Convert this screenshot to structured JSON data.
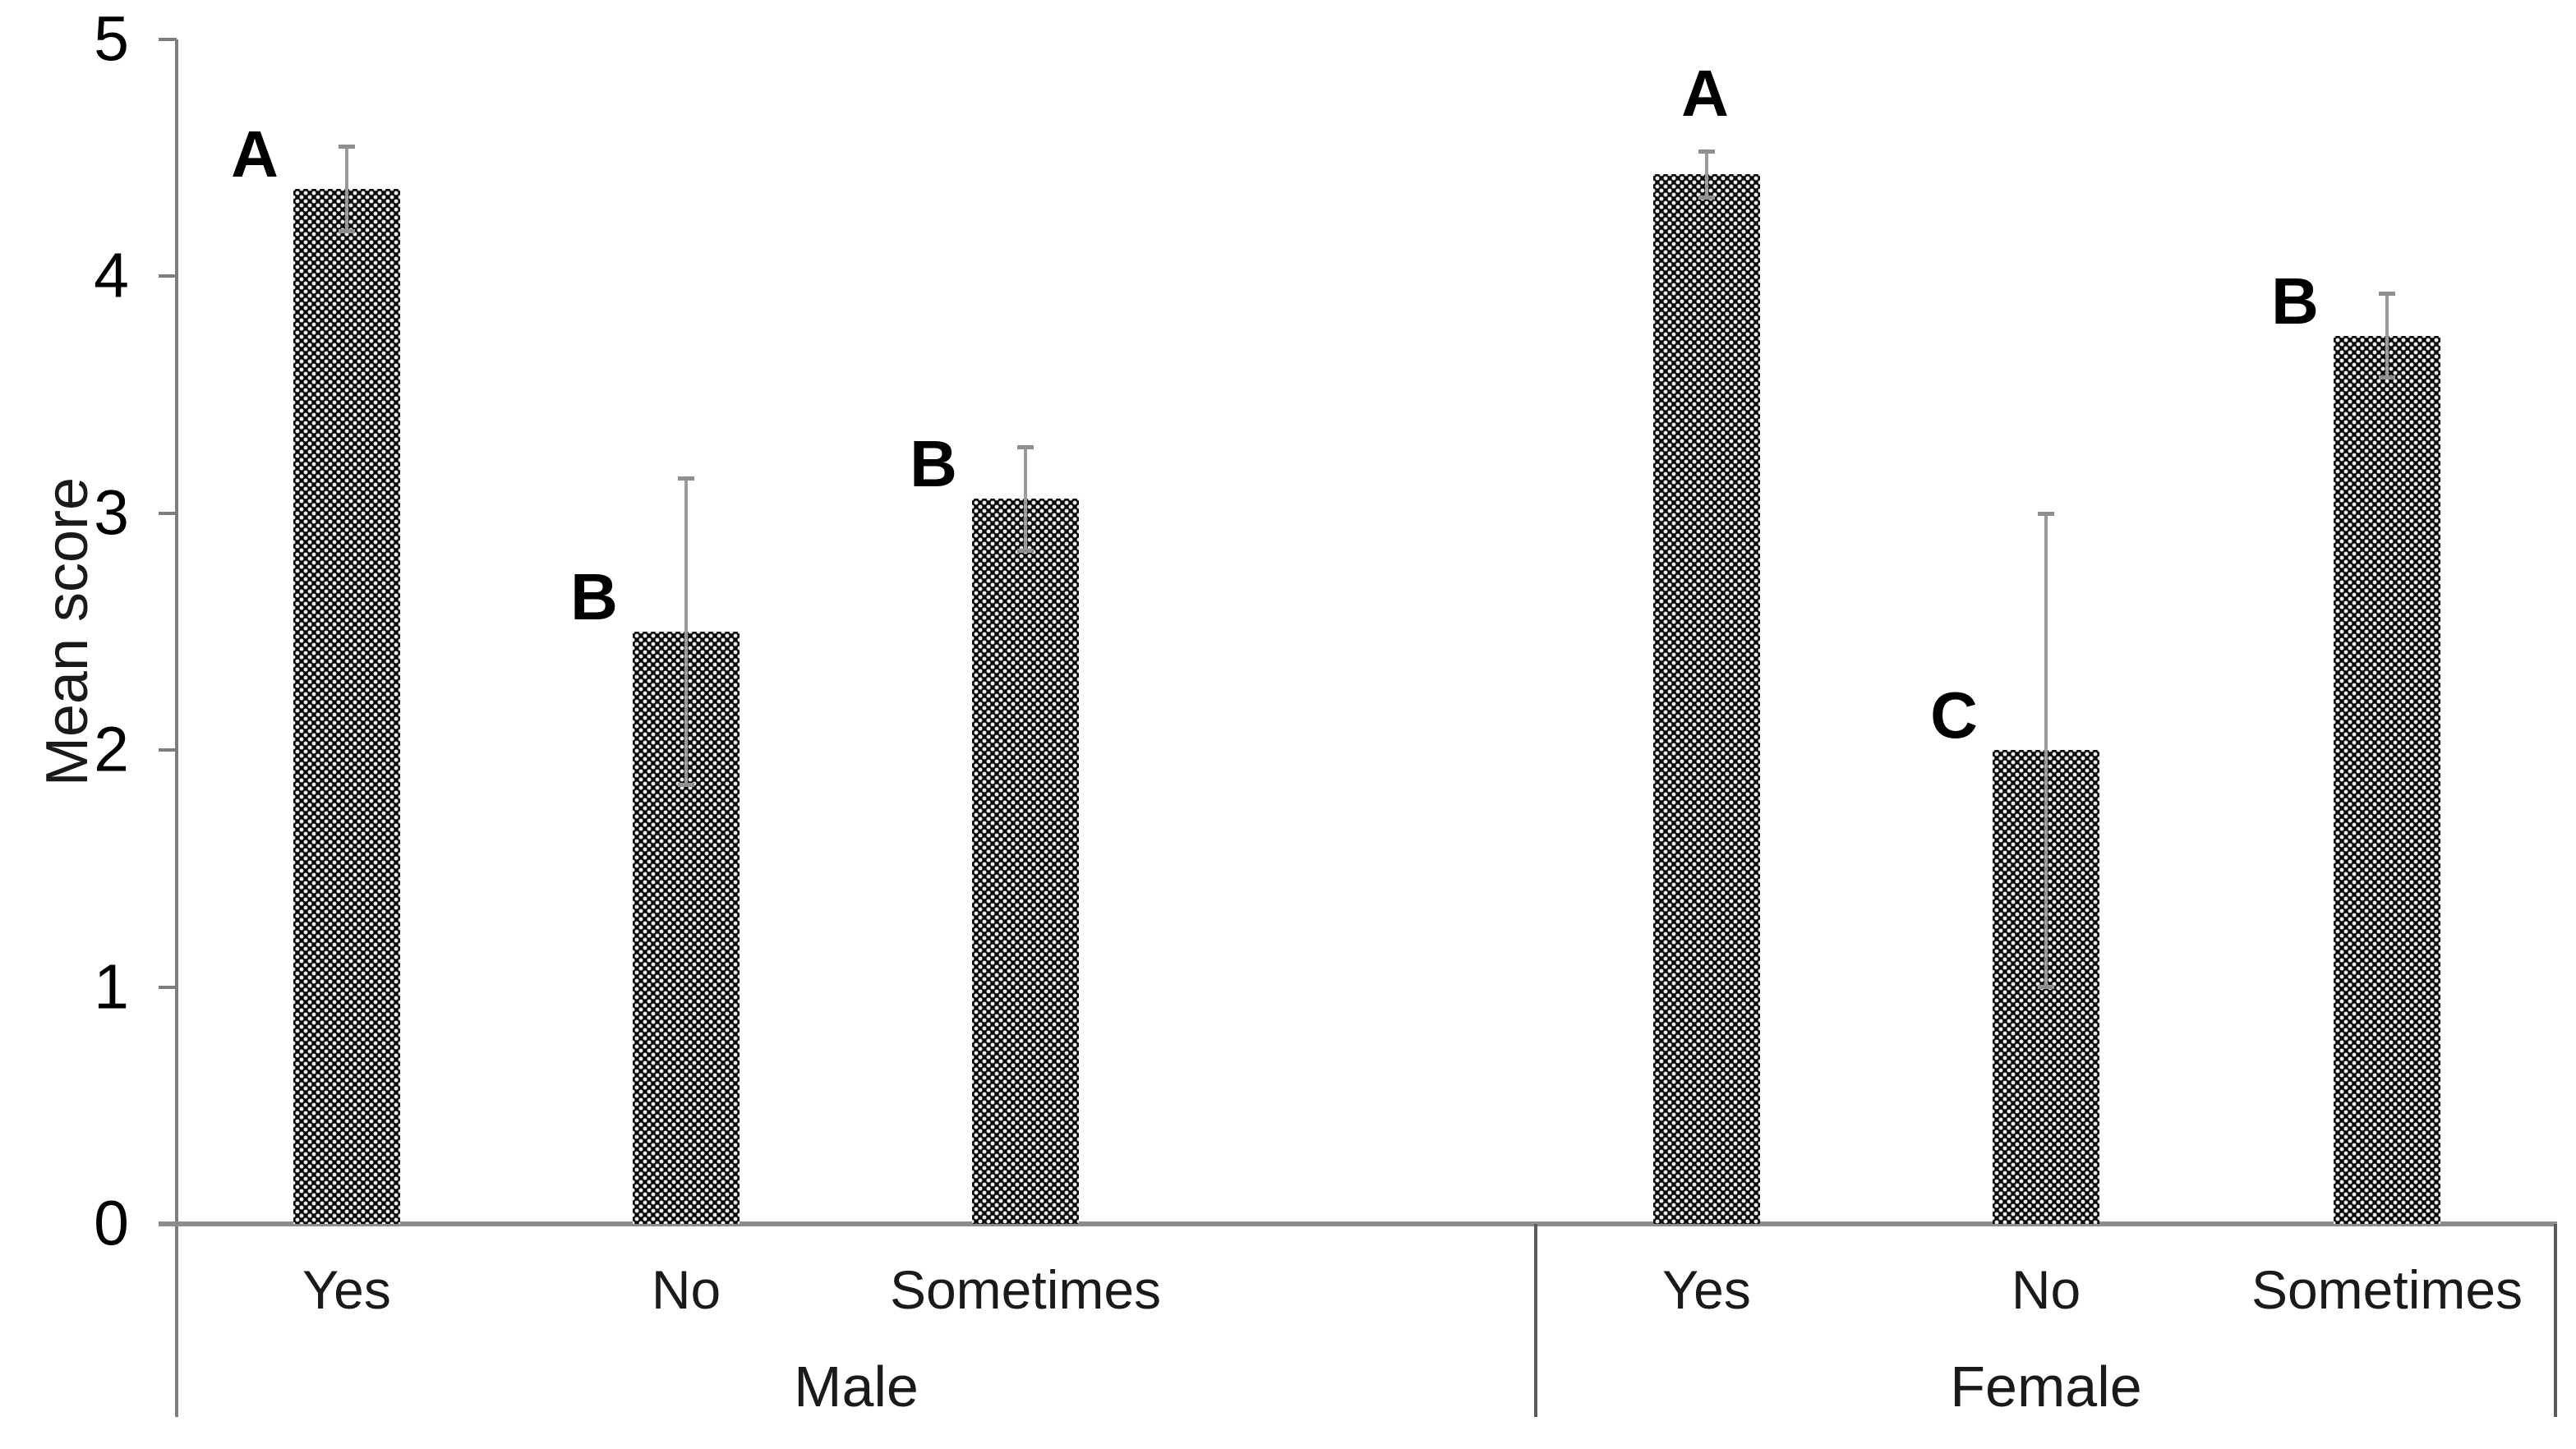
{
  "figure": {
    "background": "#ffffff",
    "bar_fill": "#0a0a0a",
    "bar_dot_color": "#ededed",
    "axis_color": "#7d7d7d",
    "baseline_color": "#8c8c8c",
    "divider_color": "#5a5a5a",
    "error_bar_color": "#9a9a9a",
    "text_color": "#000000"
  },
  "chart_data": {
    "type": "bar",
    "title": "",
    "xlabel": "",
    "ylabel": "Mean score",
    "ylim": [
      0,
      5
    ],
    "yticks": [
      "0",
      "1",
      "2",
      "3",
      "4",
      "5"
    ],
    "grid": false,
    "legend": null,
    "error_bars": true,
    "groups": [
      {
        "label": "Male",
        "bars": [
          {
            "category": "Yes",
            "value": 4.37,
            "error": 0.18,
            "letter": "A",
            "letter_pos": "left"
          },
          {
            "category": "No",
            "value": 2.5,
            "error": 0.65,
            "letter": "B",
            "letter_pos": "left"
          },
          {
            "category": "Sometimes",
            "value": 3.06,
            "error": 0.22,
            "letter": "B",
            "letter_pos": "left"
          }
        ]
      },
      {
        "label": "Female",
        "bars": [
          {
            "category": "Yes",
            "value": 4.43,
            "error": 0.1,
            "letter": "A",
            "letter_pos": "above"
          },
          {
            "category": "No",
            "value": 2.0,
            "error": 1.0,
            "letter": "C",
            "letter_pos": "left"
          },
          {
            "category": "Sometimes",
            "value": 3.75,
            "error": 0.18,
            "letter": "B",
            "letter_pos": "left"
          }
        ]
      }
    ]
  }
}
